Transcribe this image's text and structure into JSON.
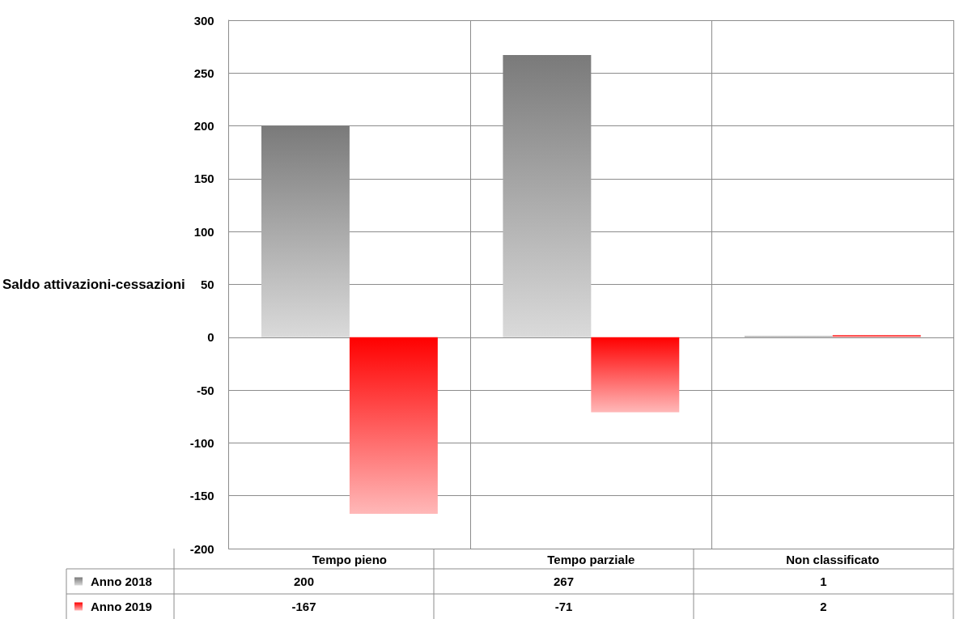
{
  "chart_data": {
    "type": "bar",
    "ylabel": "Saldo attivazioni-cessazioni",
    "categories": [
      "Tempo pieno",
      "Tempo parziale",
      "Non classificato"
    ],
    "series": [
      {
        "name": "Anno 2018",
        "color": "#7a7a7a",
        "values": [
          200,
          267,
          1
        ]
      },
      {
        "name": "Anno 2019",
        "color": "#ff0000",
        "values": [
          -167,
          -71,
          2
        ]
      }
    ],
    "ylim": [
      -200,
      300
    ],
    "yticks": [
      -200,
      -150,
      -100,
      -50,
      0,
      50,
      100,
      150,
      200,
      250,
      300
    ],
    "grid": true,
    "legend": "bottom",
    "data_labels": true
  }
}
